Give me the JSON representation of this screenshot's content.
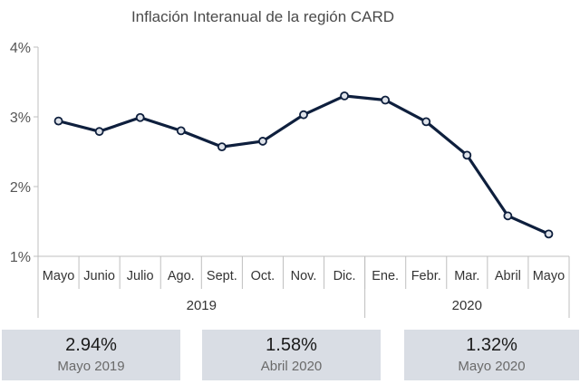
{
  "chart_data": {
    "type": "line",
    "title": "Inflación Interanual de la región CARD",
    "categories": [
      "Mayo",
      "Junio",
      "Julio",
      "Ago.",
      "Sept.",
      "Oct.",
      "Nov.",
      "Dic.",
      "Ene.",
      "Febr.",
      "Mar.",
      "Abril",
      "Mayo"
    ],
    "groups": [
      {
        "label": "2019",
        "count": 8
      },
      {
        "label": "2020",
        "count": 5
      }
    ],
    "series": [
      {
        "values": [
          2.94,
          2.79,
          2.99,
          2.8,
          2.57,
          2.65,
          3.03,
          3.3,
          3.24,
          2.93,
          2.45,
          1.58,
          1.32
        ]
      }
    ],
    "ylim": [
      1,
      4
    ],
    "yticks": [
      "1%",
      "2%",
      "3%",
      "4%"
    ],
    "grid": false,
    "line_color": "#0e1f3d",
    "marker_fill": "#dfe3ea"
  },
  "cards": [
    {
      "value": "2.94%",
      "label": "Mayo 2019"
    },
    {
      "value": "1.58%",
      "label": "Abril 2020"
    },
    {
      "value": "1.32%",
      "label": "Mayo 2020"
    }
  ]
}
